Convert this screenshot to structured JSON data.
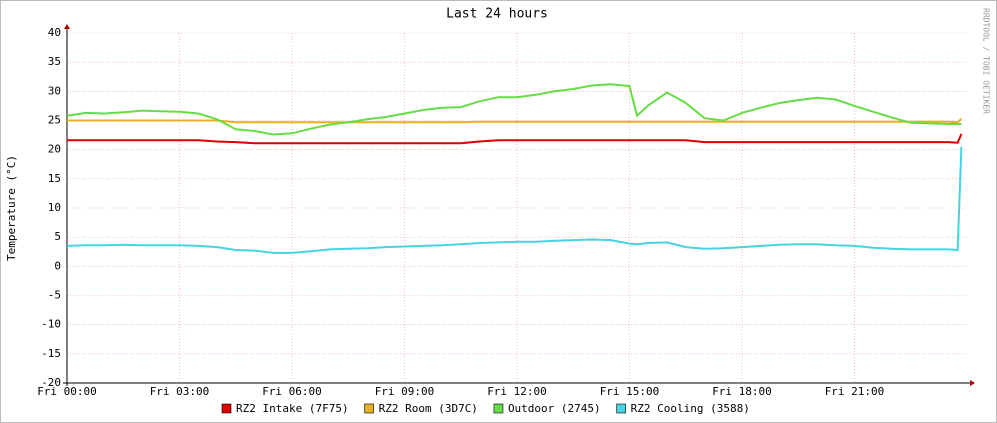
{
  "chart_data": {
    "type": "line",
    "title": "Last 24 hours",
    "y_label": "Temperature (°C)",
    "watermark": "RRDTOOL / TOBI OETIKER",
    "x": [
      0,
      0.5,
      1,
      1.5,
      2,
      2.5,
      3,
      3.5,
      4,
      4.5,
      5,
      5.5,
      6,
      6.5,
      7,
      7.5,
      8,
      8.5,
      9,
      9.5,
      10,
      10.5,
      11,
      11.5,
      12,
      12.5,
      13,
      13.5,
      14,
      14.5,
      15,
      15.2,
      15.5,
      16,
      16.5,
      17,
      17.5,
      18,
      18.5,
      19,
      19.5,
      20,
      20.5,
      21,
      21.5,
      22,
      22.5,
      23,
      23.5,
      23.75,
      23.85
    ],
    "xlim": [
      0,
      24
    ],
    "xticks": [
      {
        "value": 0,
        "label": "Fri 00:00"
      },
      {
        "value": 3,
        "label": "Fri 03:00"
      },
      {
        "value": 6,
        "label": "Fri 06:00"
      },
      {
        "value": 9,
        "label": "Fri 09:00"
      },
      {
        "value": 12,
        "label": "Fri 12:00"
      },
      {
        "value": 15,
        "label": "Fri 15:00"
      },
      {
        "value": 18,
        "label": "Fri 18:00"
      },
      {
        "value": 21,
        "label": "Fri 21:00"
      }
    ],
    "ylim": [
      -20,
      40
    ],
    "yticks": [
      -20,
      -15,
      -10,
      -5,
      0,
      5,
      10,
      15,
      20,
      25,
      30,
      35,
      40
    ],
    "grid": true,
    "series": [
      {
        "name": "RZ2 Intake (7F75)",
        "color": "#dd0000",
        "values": [
          21.6,
          21.6,
          21.6,
          21.6,
          21.6,
          21.6,
          21.6,
          21.6,
          21.4,
          21.3,
          21.1,
          21.1,
          21.1,
          21.1,
          21.1,
          21.1,
          21.1,
          21.1,
          21.1,
          21.1,
          21.1,
          21.1,
          21.4,
          21.6,
          21.6,
          21.6,
          21.6,
          21.6,
          21.6,
          21.6,
          21.6,
          21.6,
          21.6,
          21.6,
          21.6,
          21.3,
          21.3,
          21.3,
          21.3,
          21.3,
          21.3,
          21.3,
          21.3,
          21.3,
          21.3,
          21.3,
          21.3,
          21.3,
          21.3,
          21.2,
          22.7
        ]
      },
      {
        "name": "RZ2 Room (3D7C)",
        "color": "#e8b020",
        "values": [
          25.0,
          25.0,
          25.0,
          25.0,
          25.0,
          25.0,
          25.0,
          25.0,
          25.0,
          24.7,
          24.7,
          24.7,
          24.7,
          24.7,
          24.7,
          24.7,
          24.7,
          24.7,
          24.7,
          24.7,
          24.7,
          24.7,
          24.8,
          24.8,
          24.8,
          24.8,
          24.8,
          24.8,
          24.8,
          24.8,
          24.8,
          24.8,
          24.8,
          24.8,
          24.8,
          24.8,
          24.8,
          24.8,
          24.8,
          24.8,
          24.8,
          24.8,
          24.8,
          24.8,
          24.8,
          24.8,
          24.8,
          24.8,
          24.8,
          24.7,
          25.3
        ]
      },
      {
        "name": "Outdoor (2745)",
        "color": "#66dd44",
        "values": [
          25.8,
          26.3,
          26.2,
          26.4,
          26.7,
          26.6,
          26.5,
          26.2,
          25.2,
          23.5,
          23.2,
          22.6,
          22.8,
          23.6,
          24.3,
          24.7,
          25.2,
          25.6,
          26.2,
          26.8,
          27.2,
          27.3,
          28.3,
          29,
          29,
          29.4,
          30,
          30.4,
          31,
          31.2,
          30.9,
          25.8,
          27.6,
          29.8,
          28,
          25.4,
          25,
          26.3,
          27.2,
          28,
          28.5,
          28.9,
          28.6,
          27.5,
          26.5,
          25.5,
          24.6,
          24.5,
          24.4,
          24.4,
          24.4
        ]
      },
      {
        "name": "RZ2 Cooling (3588)",
        "color": "#44d4e0",
        "values": [
          3.5,
          3.6,
          3.6,
          3.7,
          3.6,
          3.6,
          3.6,
          3.5,
          3.3,
          2.8,
          2.7,
          2.3,
          2.3,
          2.6,
          2.9,
          3.0,
          3.1,
          3.3,
          3.4,
          3.5,
          3.6,
          3.8,
          4.0,
          4.1,
          4.2,
          4.2,
          4.4,
          4.5,
          4.6,
          4.5,
          3.9,
          3.8,
          4.0,
          4.1,
          3.3,
          3.0,
          3.1,
          3.3,
          3.5,
          3.7,
          3.8,
          3.8,
          3.6,
          3.5,
          3.2,
          3.0,
          2.9,
          2.9,
          2.9,
          2.8,
          20.5
        ]
      }
    ]
  }
}
